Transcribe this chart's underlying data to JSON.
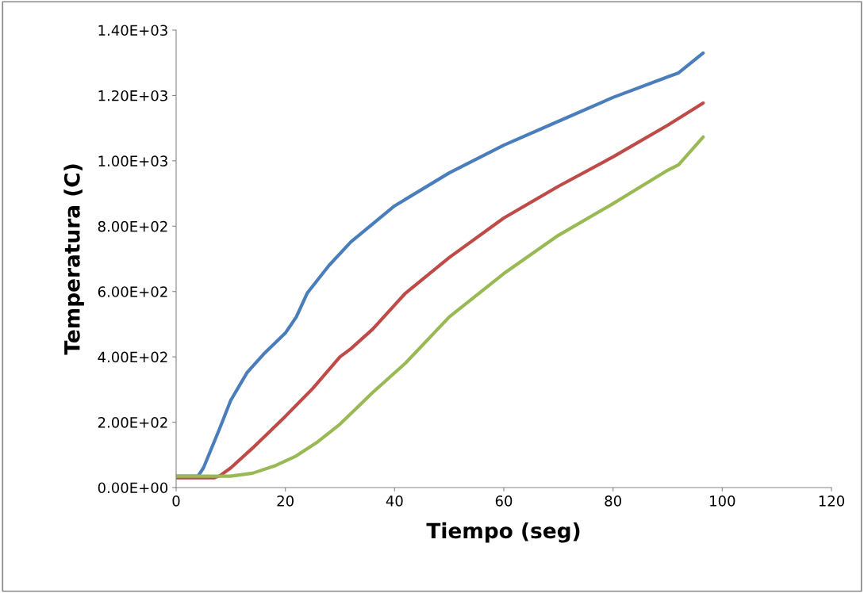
{
  "chart_data": {
    "type": "line",
    "xlabel": "Tiempo (seg)",
    "ylabel": "Temperatura (C)",
    "xlim": [
      0,
      120
    ],
    "xticks": [
      0,
      20,
      40,
      60,
      80,
      100,
      120
    ],
    "ylim": [
      0,
      1400
    ],
    "yticks": [
      {
        "value": 0,
        "label": "0.00E+00"
      },
      {
        "value": 200,
        "label": "2.00E+02"
      },
      {
        "value": 400,
        "label": "4.00E+02"
      },
      {
        "value": 600,
        "label": "6.00E+02"
      },
      {
        "value": 800,
        "label": "8.00E+02"
      },
      {
        "value": 1000,
        "label": "1.00E+03"
      },
      {
        "value": 1200,
        "label": "1.20E+03"
      },
      {
        "value": 1400,
        "label": "1.40E+03"
      }
    ],
    "grid": false,
    "legend": false,
    "marker": "none",
    "line_style": "solid",
    "series": [
      {
        "color": "#4a7ebb",
        "x": [
          0,
          4,
          5,
          8,
          10,
          13,
          16,
          20,
          22,
          24,
          28,
          32,
          40,
          50,
          60,
          70,
          80,
          90,
          92,
          96.5
        ],
        "values": [
          35,
          35,
          60,
          182,
          267,
          352,
          408,
          473,
          522,
          595,
          680,
          752,
          862,
          963,
          1048,
          1121,
          1194,
          1257,
          1269,
          1330
        ]
      },
      {
        "color": "#be4b48",
        "x": [
          0,
          7,
          8,
          10,
          14,
          20,
          25,
          30,
          32,
          36,
          42,
          50,
          60,
          70,
          80,
          90,
          96.5
        ],
        "values": [
          30,
          30,
          36,
          60,
          121,
          218,
          303,
          400,
          425,
          485,
          595,
          704,
          825,
          922,
          1012,
          1109,
          1177
        ]
      },
      {
        "color": "#98b954",
        "x": [
          0,
          10,
          14,
          18,
          22,
          26,
          30,
          36,
          42,
          50,
          60,
          70,
          80,
          90,
          92,
          96.5
        ],
        "values": [
          35,
          35,
          44,
          66,
          97,
          141,
          194,
          291,
          381,
          522,
          655,
          772,
          869,
          971,
          988,
          1073
        ]
      }
    ]
  }
}
